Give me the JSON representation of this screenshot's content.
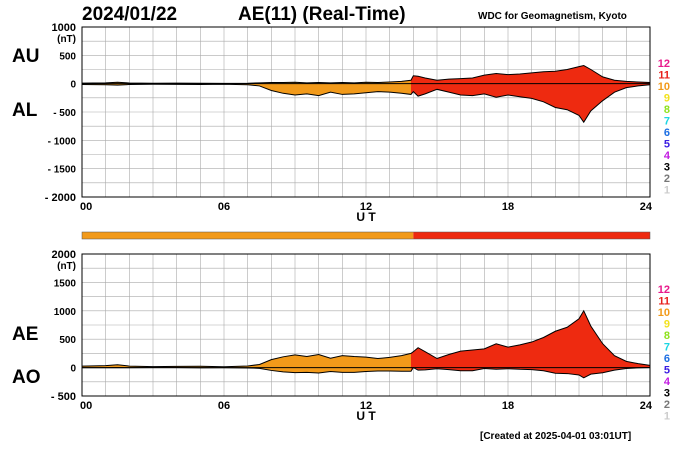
{
  "header": {
    "date": "2024/01/22",
    "title": "AE(11) (Real-Time)",
    "source": "WDC for Geomagnetism, Kyoto"
  },
  "footer": {
    "created": "[Created at 2025-04-01 03:01UT]"
  },
  "colors": {
    "level_10": "#f29a1a",
    "level_11": "#ee2a10",
    "grid": "#aaaaaa",
    "line": "#000000"
  },
  "station_levels": [
    {
      "label": "12",
      "color": "#e8198b"
    },
    {
      "label": "11",
      "color": "#e8201c"
    },
    {
      "label": "10",
      "color": "#f29a1a"
    },
    {
      "label": "9",
      "color": "#f2e21c"
    },
    {
      "label": "8",
      "color": "#8ee21c"
    },
    {
      "label": "7",
      "color": "#1cd6e2"
    },
    {
      "label": "6",
      "color": "#1c6ee2"
    },
    {
      "label": "5",
      "color": "#3a1ce2"
    },
    {
      "label": "4",
      "color": "#c21ce2"
    },
    {
      "label": "3",
      "color": "#000000"
    },
    {
      "label": "2",
      "color": "#777777"
    },
    {
      "label": "1",
      "color": "#cccccc"
    }
  ],
  "level_bar": [
    {
      "from": 0,
      "to": 14,
      "level": "10",
      "color": "#f29a1a"
    },
    {
      "from": 14,
      "to": 24,
      "level": "11",
      "color": "#ee2a10"
    }
  ],
  "chart_data": [
    {
      "type": "area",
      "unit": "(nT)",
      "xlabel": "U T",
      "xlim": [
        0,
        24
      ],
      "xticks": [
        0,
        6,
        12,
        18,
        24
      ],
      "xtick_labels": [
        "00",
        "06",
        "12",
        "18",
        "24"
      ],
      "ylim": [
        -2000,
        1000
      ],
      "yticks": [
        1000,
        500,
        0,
        -500,
        -1000,
        -1500,
        -2000
      ],
      "ytick_labels": [
        "1000",
        "500",
        "0",
        "- 500",
        "- 1000",
        "- 1500",
        "- 2000"
      ],
      "grid": true,
      "series": [
        {
          "name": "AU",
          "x": [
            0,
            1,
            1.5,
            2,
            3,
            4,
            5,
            6,
            7,
            7.5,
            8,
            8.5,
            9,
            9.5,
            10,
            10.5,
            11,
            11.5,
            12,
            12.5,
            13,
            13.5,
            13.9,
            14,
            14.2,
            14.5,
            15,
            15.5,
            16,
            16.5,
            17,
            17.5,
            18,
            18.5,
            19,
            19.5,
            20,
            20.5,
            21,
            21.2,
            21.5,
            22,
            22.5,
            23,
            23.5,
            24
          ],
          "values": [
            10,
            15,
            25,
            12,
            8,
            10,
            8,
            5,
            8,
            15,
            20,
            20,
            25,
            15,
            20,
            15,
            20,
            15,
            25,
            20,
            30,
            40,
            60,
            140,
            130,
            100,
            60,
            80,
            90,
            100,
            150,
            180,
            160,
            170,
            190,
            210,
            220,
            250,
            300,
            320,
            250,
            120,
            60,
            40,
            30,
            20
          ]
        },
        {
          "name": "AL",
          "x": [
            0,
            1,
            1.5,
            2,
            3,
            4,
            5,
            6,
            7,
            7.5,
            8,
            8.5,
            9,
            9.5,
            10,
            10.5,
            11,
            11.5,
            12,
            12.5,
            13,
            13.5,
            13.9,
            14,
            14.2,
            14.5,
            15,
            15.5,
            16,
            16.5,
            17,
            17.5,
            18,
            18.5,
            19,
            19.5,
            20,
            20.5,
            21,
            21.2,
            21.5,
            22,
            22.5,
            23,
            23.5,
            24
          ],
          "values": [
            -15,
            -20,
            -25,
            -15,
            -10,
            -12,
            -15,
            -10,
            -20,
            -40,
            -120,
            -170,
            -200,
            -180,
            -210,
            -150,
            -190,
            -180,
            -160,
            -140,
            -150,
            -170,
            -190,
            -140,
            -220,
            -180,
            -100,
            -150,
            -200,
            -210,
            -180,
            -240,
            -200,
            -230,
            -260,
            -320,
            -420,
            -460,
            -560,
            -680,
            -480,
            -300,
            -150,
            -70,
            -40,
            -20
          ]
        }
      ]
    },
    {
      "type": "area",
      "unit": "(nT)",
      "xlabel": "U T",
      "xlim": [
        0,
        24
      ],
      "xticks": [
        0,
        6,
        12,
        18,
        24
      ],
      "xtick_labels": [
        "00",
        "06",
        "12",
        "18",
        "24"
      ],
      "ylim": [
        -500,
        2000
      ],
      "yticks": [
        2000,
        1500,
        1000,
        500,
        0,
        -500
      ],
      "ytick_labels": [
        "2000",
        "1500",
        "1000",
        "500",
        "0",
        "- 500"
      ],
      "grid": true,
      "series": [
        {
          "name": "AE",
          "x": [
            0,
            1,
            1.5,
            2,
            3,
            4,
            5,
            6,
            7,
            7.5,
            8,
            8.5,
            9,
            9.5,
            10,
            10.5,
            11,
            11.5,
            12,
            12.5,
            13,
            13.5,
            13.9,
            14,
            14.2,
            14.5,
            15,
            15.5,
            16,
            16.5,
            17,
            17.5,
            18,
            18.5,
            19,
            19.5,
            20,
            20.5,
            21,
            21.2,
            21.5,
            22,
            22.5,
            23,
            23.5,
            24
          ],
          "values": [
            25,
            35,
            50,
            27,
            18,
            22,
            23,
            15,
            28,
            55,
            140,
            190,
            225,
            195,
            230,
            165,
            210,
            195,
            185,
            160,
            180,
            210,
            250,
            280,
            350,
            280,
            160,
            230,
            290,
            310,
            330,
            420,
            360,
            400,
            450,
            530,
            640,
            710,
            860,
            1000,
            730,
            420,
            210,
            110,
            70,
            40
          ]
        },
        {
          "name": "AO",
          "x": [
            0,
            1,
            1.5,
            2,
            3,
            4,
            5,
            6,
            7,
            7.5,
            8,
            8.5,
            9,
            9.5,
            10,
            10.5,
            11,
            11.5,
            12,
            12.5,
            13,
            13.5,
            13.9,
            14,
            14.2,
            14.5,
            15,
            15.5,
            16,
            16.5,
            17,
            17.5,
            18,
            18.5,
            19,
            19.5,
            20,
            20.5,
            21,
            21.2,
            21.5,
            22,
            22.5,
            23,
            23.5,
            24
          ],
          "values": [
            -3,
            -3,
            0,
            -2,
            -1,
            -1,
            -4,
            -3,
            -6,
            -13,
            -50,
            -75,
            -88,
            -83,
            -95,
            -68,
            -85,
            -83,
            -68,
            -60,
            -60,
            -65,
            -65,
            0,
            -45,
            -40,
            -20,
            -35,
            -55,
            -55,
            -15,
            -30,
            -20,
            -30,
            -35,
            -55,
            -100,
            -105,
            -130,
            -180,
            -115,
            -90,
            -45,
            -15,
            -5,
            0
          ]
        }
      ]
    }
  ]
}
